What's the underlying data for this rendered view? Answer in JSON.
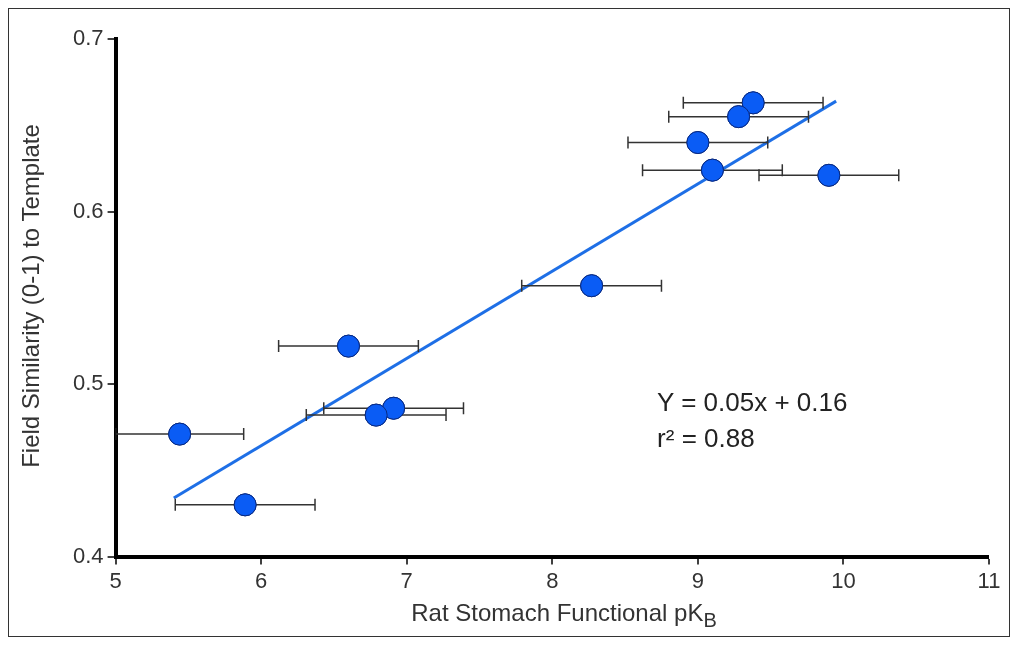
{
  "chart_data": {
    "type": "scatter",
    "xlabel": "Rat Stomach Functional pK$_{B}$",
    "ylabel": "Field Similarity (0-1) to Template",
    "xlim": [
      5,
      11
    ],
    "xticks": [
      5,
      6,
      7,
      8,
      9,
      10,
      11
    ],
    "ylim": [
      0.4,
      0.7
    ],
    "yticks": [
      0.4,
      0.5,
      0.6,
      0.7
    ],
    "grid": false,
    "legend": false,
    "series": [
      {
        "marker": "circle",
        "color": "#0a5cf5",
        "x": [
          9.38,
          9.28,
          9.0,
          9.1,
          9.9,
          8.27,
          6.6,
          6.91,
          6.79,
          5.44,
          5.89
        ],
        "values": [
          0.663,
          0.655,
          0.64,
          0.624,
          0.621,
          0.557,
          0.522,
          0.486,
          0.482,
          0.471,
          0.43
        ],
        "xerrors": [
          0.48,
          0.48,
          0.48,
          0.48,
          0.48,
          0.48,
          0.48,
          0.48,
          0.48,
          0.44,
          0.48
        ]
      },
      {
        "type": "line",
        "color": "#1e6fe6",
        "x": [
          5.4,
          9.95
        ],
        "values": [
          0.434,
          0.664
        ]
      }
    ],
    "annotations": [
      "Y = 0.05x + 0.16",
      "r² = 0.88"
    ]
  }
}
